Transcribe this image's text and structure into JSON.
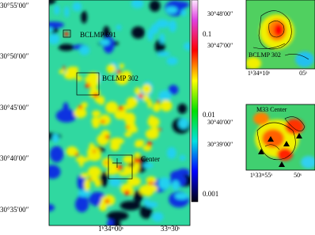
{
  "main_panel": {
    "y_axis_labels": [
      "30°55′00″",
      "30°50′00″",
      "30°45′00″",
      "30°40′00″",
      "30°35′00″"
    ],
    "x_axis_labels": [
      "1ʰ34ᵐ00ˢ",
      "33ᵐ30ˢ"
    ],
    "annotations": [
      "BCLMP 691",
      "BCLMP 302",
      "Center"
    ],
    "colorbar_labels": [
      "0.1",
      "0.01",
      "0.001"
    ]
  },
  "insets": [
    {
      "label": "BCLMP 302",
      "y_axis_labels": [
        "30°48′00″",
        "30°47′00″"
      ],
      "x_axis_labels": [
        "1ʰ34ᵐ10ˢ",
        "05ˢ"
      ]
    },
    {
      "label": "M33 Center",
      "y_axis_labels": [
        "30°40′00″",
        "30°39′00″"
      ],
      "x_axis_labels": [
        "1ʰ33ᵐ55ˢ",
        "50ˢ"
      ]
    }
  ]
}
